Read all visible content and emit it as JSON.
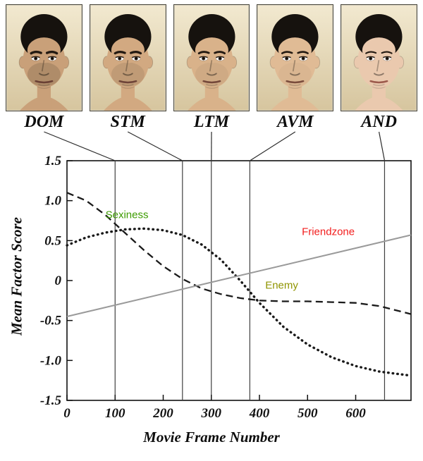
{
  "faces": {
    "hair_color": "#16120e",
    "panel_bg_top": "#f2e9d0",
    "panel_bg_bottom": "#d6c59e",
    "panels": [
      {
        "label": "DOM",
        "skin": "#c9a079",
        "lip": "#6a4034",
        "stubble": 0.28,
        "brow": 3.2
      },
      {
        "label": "STM",
        "skin": "#d2a981",
        "lip": "#6e4438",
        "stubble": 0.18,
        "brow": 3.0
      },
      {
        "label": "LTM",
        "skin": "#d9b28a",
        "lip": "#74483a",
        "stubble": 0.1,
        "brow": 2.7
      },
      {
        "label": "AVM",
        "skin": "#e0bb95",
        "lip": "#7a4c3c",
        "stubble": 0.05,
        "brow": 2.4
      },
      {
        "label": "AND",
        "skin": "#eac9ae",
        "lip": "#9c5a4c",
        "stubble": 0.0,
        "brow": 2.0
      }
    ]
  },
  "chart_data": {
    "type": "line",
    "title": "",
    "xlabel": "Movie Frame Number",
    "ylabel": "Mean Factor Score",
    "xlim": [
      0,
      715
    ],
    "ylim": [
      -1.5,
      1.5
    ],
    "x_ticks": [
      0,
      100,
      200,
      300,
      400,
      500,
      600
    ],
    "y_ticks": [
      -1.5,
      -1.0,
      -0.5,
      0,
      0.5,
      1.0,
      1.5
    ],
    "grid": false,
    "legend": "none",
    "vertical_lines": [
      100,
      240,
      300,
      380,
      660
    ],
    "series": [
      {
        "name": "Enemy",
        "style": "dashed",
        "color": "#1a1a1a",
        "x": [
          0,
          40,
          80,
          120,
          160,
          200,
          240,
          280,
          320,
          360,
          400,
          450,
          500,
          550,
          600,
          650,
          715
        ],
        "y": [
          1.1,
          1.0,
          0.82,
          0.6,
          0.38,
          0.18,
          0.02,
          -0.1,
          -0.17,
          -0.22,
          -0.25,
          -0.26,
          -0.26,
          -0.27,
          -0.28,
          -0.32,
          -0.42
        ]
      },
      {
        "name": "Sexiness",
        "style": "dotted",
        "color": "#1a1a1a",
        "x": [
          0,
          40,
          80,
          120,
          160,
          200,
          240,
          280,
          320,
          360,
          400,
          450,
          500,
          550,
          600,
          650,
          715
        ],
        "y": [
          0.44,
          0.54,
          0.6,
          0.64,
          0.65,
          0.63,
          0.57,
          0.45,
          0.26,
          0.0,
          -0.28,
          -0.58,
          -0.8,
          -0.96,
          -1.07,
          -1.14,
          -1.19
        ]
      },
      {
        "name": "Friendzone",
        "style": "solid",
        "color": "#9a9a9a",
        "x": [
          0,
          715
        ],
        "y": [
          -0.45,
          0.57
        ]
      }
    ],
    "annotations": [
      {
        "text": "Sexiness",
        "x": 80,
        "y": 0.78,
        "color": "#3c9b00"
      },
      {
        "text": "Friendzone",
        "x": 488,
        "y": 0.57,
        "color": "#f21d1d"
      },
      {
        "text": "Enemy",
        "x": 412,
        "y": -0.1,
        "color": "#8f9400"
      }
    ]
  }
}
